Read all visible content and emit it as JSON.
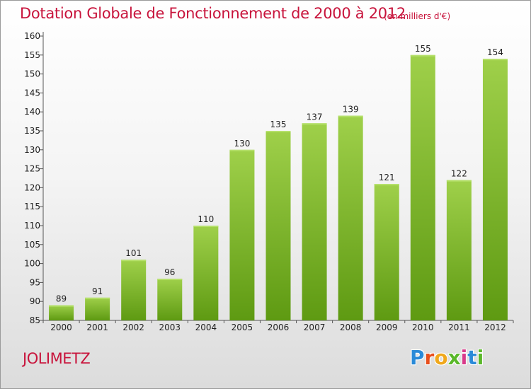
{
  "header": {
    "title": "Dotation Globale de Fonctionnement de 2000 à 2012",
    "subtitle": "(en milliers d'€)"
  },
  "footer": {
    "commune": "JOLIMETZ",
    "logo_letters": [
      "P",
      "r",
      "o",
      "x",
      "i",
      "t",
      "i"
    ]
  },
  "colors": {
    "title": "#c8143c",
    "bar_light": "#9fd04a",
    "bar_dark": "#5e9a12"
  },
  "chart_data": {
    "type": "bar",
    "title": "Dotation Globale de Fonctionnement de 2000 à 2012",
    "subtitle": "(en milliers d'€)",
    "categories": [
      "2000",
      "2001",
      "2002",
      "2003",
      "2004",
      "2005",
      "2006",
      "2007",
      "2008",
      "2009",
      "2010",
      "2011",
      "2012"
    ],
    "values": [
      89,
      91,
      101,
      96,
      110,
      130,
      135,
      137,
      139,
      121,
      155,
      122,
      154
    ],
    "ylim": [
      85,
      160
    ],
    "yticks": [
      85,
      90,
      95,
      100,
      105,
      110,
      115,
      120,
      125,
      130,
      135,
      140,
      145,
      150,
      155,
      160
    ],
    "grid": false,
    "legend": "none"
  }
}
